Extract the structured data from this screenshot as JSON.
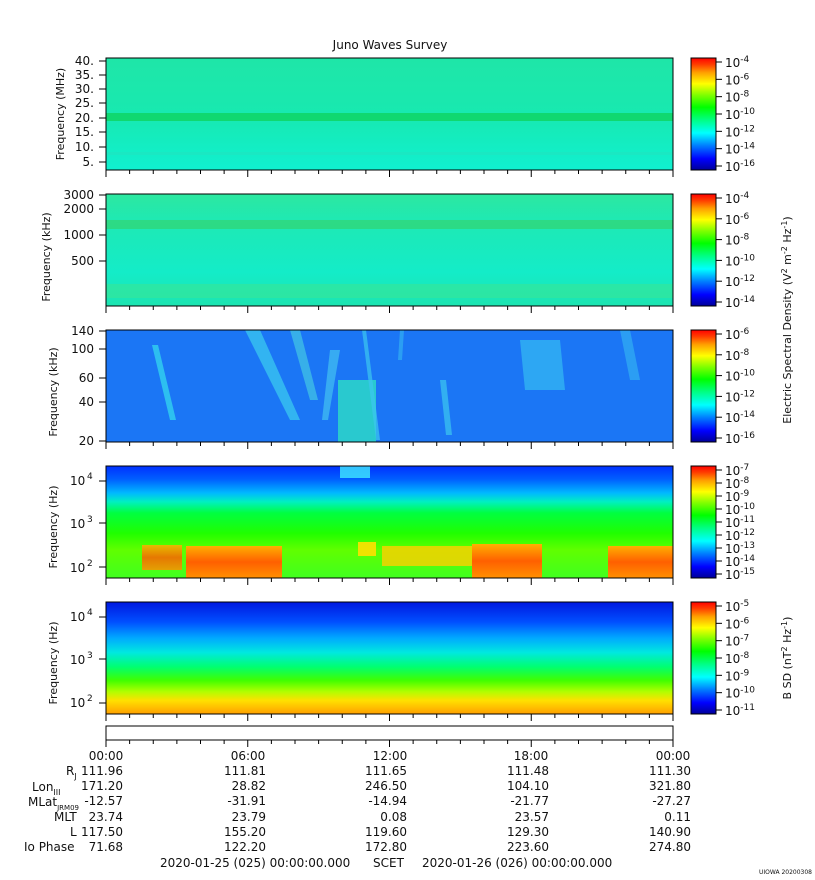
{
  "title": "Juno Waves Survey",
  "watermark": "UIOWA 20200308",
  "colors": {
    "colormap": [
      "#000099",
      "#0000ff",
      "#0080ff",
      "#00ffff",
      "#00ff80",
      "#00ff00",
      "#80ff00",
      "#ffff00",
      "#ffa000",
      "#ff4000",
      "#ff0000"
    ],
    "background": "#ffffff"
  },
  "chart_data": [
    {
      "type": "heatmap",
      "ylabel": "Frequency (MHz)",
      "yticks": [
        "40.",
        "35.",
        "30.",
        "25.",
        "20.",
        "15.",
        "10.",
        "5."
      ],
      "colorbar": {
        "ticks": [
          "10^-4",
          "10^-6",
          "10^-8",
          "10^-10",
          "10^-12",
          "10^-14",
          "10^-16"
        ]
      },
      "features": [
        "uniform background near 10^-12 to 10^-13",
        "bright band near 21 MHz"
      ]
    },
    {
      "type": "heatmap",
      "ylabel": "Frequency (kHz)",
      "yticks": [
        "3000",
        "2000",
        "1000",
        "500"
      ],
      "colorbar": {
        "ticks": [
          "10^-4",
          "10^-6",
          "10^-8",
          "10^-10",
          "10^-12",
          "10^-14"
        ]
      },
      "features": [
        "band near 1300 kHz",
        "weak emission near lower edge"
      ]
    },
    {
      "type": "heatmap",
      "ylabel": "Frequency (kHz)",
      "yticks": [
        "140",
        "100",
        "60",
        "40",
        "20"
      ],
      "colorbar": {
        "ticks": [
          "10^-6",
          "10^-8",
          "10^-10",
          "10^-12",
          "10^-14",
          "10^-16"
        ]
      },
      "features": [
        "blue background",
        "drifting cyan/green bursts"
      ]
    },
    {
      "type": "heatmap",
      "ylabel": "Frequency (Hz)",
      "yticks": [
        "10^4",
        "10^3",
        "10^2"
      ],
      "colorbar": {
        "ticks": [
          "10^-7",
          "10^-8",
          "10^-9",
          "10^-10",
          "10^-11",
          "10^-12",
          "10^-13",
          "10^-14",
          "10^-15"
        ]
      },
      "features": [
        "blue above ~3 kHz",
        "green mid band",
        "orange/red patches near 100-200 Hz"
      ]
    },
    {
      "type": "heatmap",
      "ylabel": "Frequency (Hz)",
      "yticks": [
        "10^4",
        "10^3",
        "10^2"
      ],
      "colorbar": {
        "label": "B SD (nT^2 Hz^-1)",
        "ticks": [
          "10^-5",
          "10^-6",
          "10^-7",
          "10^-8",
          "10^-9",
          "10^-10",
          "10^-11"
        ]
      },
      "features": [
        "blue at high frequency",
        "green to yellow to orange toward low frequency"
      ]
    }
  ],
  "electric_colorbar_label": "Electric Spectral Density (V^2 m^-2 Hz^-1)",
  "time_axis": {
    "labels": [
      "00:00",
      "06:00",
      "12:00",
      "18:00",
      "00:00"
    ]
  },
  "ephemeris": {
    "rows": [
      {
        "label": "RJ",
        "values": [
          "111.96",
          "111.81",
          "111.65",
          "111.48",
          "111.30"
        ]
      },
      {
        "label": "LonIII",
        "values": [
          "171.20",
          "28.82",
          "246.50",
          "104.10",
          "321.80"
        ]
      },
      {
        "label": "MLatJRM09",
        "values": [
          "-12.57",
          "-31.91",
          "-14.94",
          "-21.77",
          "-27.27"
        ]
      },
      {
        "label": "MLT",
        "values": [
          "23.74",
          "23.79",
          "0.08",
          "23.57",
          "0.11"
        ]
      },
      {
        "label": "L",
        "values": [
          "117.50",
          "155.20",
          "119.60",
          "129.30",
          "140.90"
        ]
      },
      {
        "label": "Io Phase",
        "values": [
          "71.68",
          "122.20",
          "172.80",
          "223.60",
          "274.80"
        ]
      }
    ]
  },
  "footer": {
    "start": "2020-01-25 (025) 00:00:00.000",
    "frame": "SCET",
    "end": "2020-01-26 (026) 00:00:00.000"
  }
}
